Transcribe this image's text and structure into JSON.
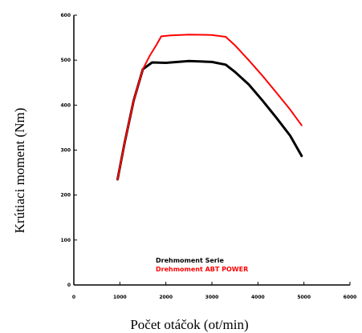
{
  "chart_data": {
    "type": "line",
    "title": "",
    "xlabel": "Počet otáčok (ot/min)",
    "ylabel": "Krútiaci moment (Nm)",
    "xlim": [
      0,
      6000
    ],
    "ylim": [
      0,
      600
    ],
    "xticks": [
      0,
      1000,
      2000,
      3000,
      4000,
      5000,
      6000
    ],
    "yticks": [
      0,
      100,
      200,
      300,
      400,
      500,
      600
    ],
    "grid": false,
    "legend_position": "bottom-right",
    "series": [
      {
        "name": "Drehmoment Serie",
        "color": "#000000",
        "x": [
          950,
          1100,
          1300,
          1500,
          1700,
          2000,
          2500,
          2800,
          3000,
          3300,
          3500,
          3800,
          4100,
          4400,
          4700,
          4950
        ],
        "y": [
          235,
          315,
          410,
          480,
          495,
          494,
          498,
          497,
          496,
          490,
          474,
          446,
          410,
          372,
          332,
          287
        ]
      },
      {
        "name": "Drehmoment ABT POWER",
        "color": "#ff0000",
        "x": [
          950,
          1100,
          1300,
          1500,
          1650,
          1800,
          1900,
          2100,
          2500,
          3000,
          3300,
          3500,
          3800,
          4100,
          4400,
          4700,
          4950
        ],
        "y": [
          235,
          315,
          410,
          480,
          510,
          535,
          553,
          555,
          557,
          556,
          552,
          533,
          500,
          465,
          428,
          390,
          355
        ]
      }
    ]
  }
}
